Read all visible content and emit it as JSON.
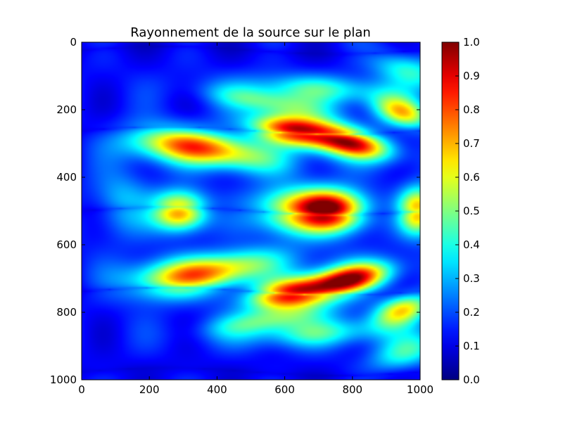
{
  "chart_data": [
    {
      "type": "heatmap",
      "title": "Rayonnement de la source sur le plan",
      "xlabel": "",
      "ylabel": "",
      "xlim": [
        0,
        1000
      ],
      "ylim": [
        1000,
        0
      ],
      "x_ticks": [
        "0",
        "200",
        "400",
        "600",
        "800",
        "1000"
      ],
      "y_ticks": [
        "0",
        "200",
        "400",
        "600",
        "800",
        "1000"
      ],
      "x_tick_values": [
        0,
        200,
        400,
        600,
        800,
        1000
      ],
      "y_tick_values": [
        0,
        200,
        400,
        600,
        800,
        1000
      ],
      "colormap": "jet",
      "value_range": [
        0,
        1
      ],
      "colorbar_ticks": [
        "0.0",
        "0.1",
        "0.2",
        "0.3",
        "0.4",
        "0.5",
        "0.6",
        "0.7",
        "0.8",
        "0.9",
        "1.0"
      ],
      "colorbar_tick_values": [
        0,
        0.1,
        0.2,
        0.3,
        0.4,
        0.5,
        0.6,
        0.7,
        0.8,
        0.9,
        1.0
      ],
      "notable_regions": [
        {
          "x": 740,
          "y": 500,
          "value": 1.0
        },
        {
          "x": 620,
          "y": 500,
          "value": 0.85
        },
        {
          "x": 290,
          "y": 500,
          "value": 0.75
        },
        {
          "x": 990,
          "y": 500,
          "value": 0.72
        },
        {
          "x": 620,
          "y": 260,
          "value": 0.82
        },
        {
          "x": 800,
          "y": 300,
          "value": 0.8
        },
        {
          "x": 620,
          "y": 745,
          "value": 0.82
        },
        {
          "x": 800,
          "y": 705,
          "value": 0.8
        },
        {
          "x": 420,
          "y": 330,
          "value": 0.65
        },
        {
          "x": 420,
          "y": 665,
          "value": 0.65
        },
        {
          "x": 960,
          "y": 220,
          "value": 0.6
        },
        {
          "x": 960,
          "y": 795,
          "value": 0.6
        },
        {
          "x": 110,
          "y": 385,
          "value": 0.05
        },
        {
          "x": 110,
          "y": 610,
          "value": 0.05
        }
      ]
    }
  ]
}
